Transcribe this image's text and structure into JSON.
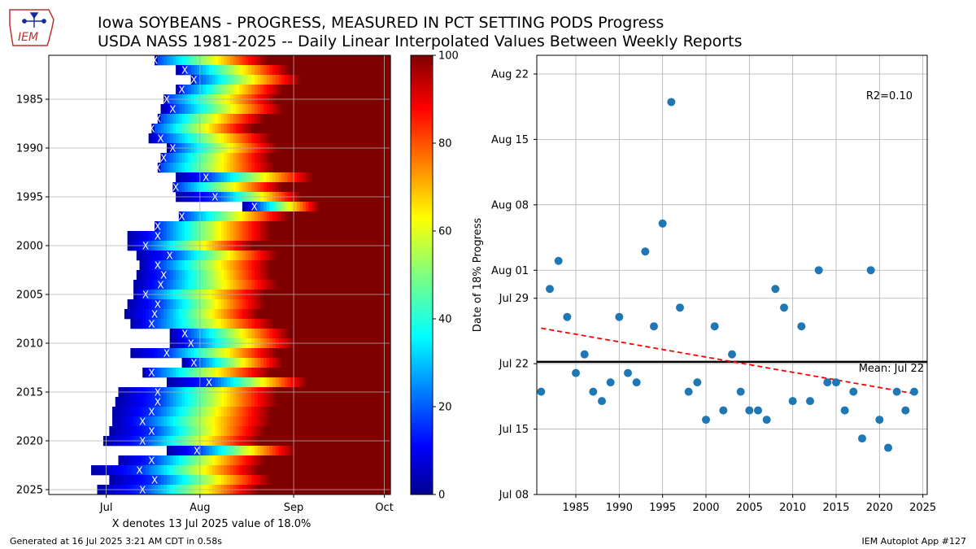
{
  "header": {
    "logo_text": "IEM",
    "title_line1": "Iowa SOYBEANS - PROGRESS, MEASURED IN PCT SETTING PODS Progress",
    "title_line2": "USDA NASS 1981-2025 -- Daily Linear Interpolated Values Between Weekly Reports"
  },
  "footer": {
    "left": "Generated at 16 Jul 2025 3:21 AM CDT in 0.58s",
    "right": "IEM Autoplot App #127"
  },
  "colors": {
    "scatter_point": "#1f77b4",
    "trend_line": "#ff0000",
    "mean_line": "#000000",
    "grid": "#b0b0b0"
  },
  "chart_data": [
    {
      "type": "heatmap",
      "colormap": "jet",
      "xlabel": "X denotes 13 Jul 2025 value of 18.0%",
      "x_ticks": [
        {
          "label": "Jul",
          "doy": 182
        },
        {
          "label": "Aug",
          "doy": 213
        },
        {
          "label": "Sep",
          "doy": 244
        },
        {
          "label": "Oct",
          "doy": 274
        }
      ],
      "xlim_doy": [
        163,
        276
      ],
      "y_ticks": [
        1985,
        1990,
        1995,
        2000,
        2005,
        2010,
        2015,
        2020,
        2025
      ],
      "ylim": [
        1980.5,
        2025.5
      ],
      "colorbar_ticks": [
        0,
        20,
        40,
        60,
        80,
        100
      ],
      "colorbar_range": [
        0,
        100
      ],
      "marker_label": "X",
      "marker_value_pct": 18.0,
      "rows": [
        {
          "year": 1981,
          "start_doy": 198,
          "x_doy": 198,
          "full_doy": 235
        },
        {
          "year": 1982,
          "start_doy": 205,
          "x_doy": 208,
          "full_doy": 242
        },
        {
          "year": 1983,
          "start_doy": 210,
          "x_doy": 211,
          "full_doy": 246
        },
        {
          "year": 1984,
          "start_doy": 205,
          "x_doy": 207,
          "full_doy": 240
        },
        {
          "year": 1985,
          "start_doy": 201,
          "x_doy": 202,
          "full_doy": 238
        },
        {
          "year": 1986,
          "start_doy": 200,
          "x_doy": 204,
          "full_doy": 240
        },
        {
          "year": 1987,
          "start_doy": 199,
          "x_doy": 199,
          "full_doy": 234
        },
        {
          "year": 1988,
          "start_doy": 197,
          "x_doy": 197,
          "full_doy": 230
        },
        {
          "year": 1989,
          "start_doy": 196,
          "x_doy": 200,
          "full_doy": 236
        },
        {
          "year": 1990,
          "start_doy": 202,
          "x_doy": 204,
          "full_doy": 238
        },
        {
          "year": 1991,
          "start_doy": 200,
          "x_doy": 201,
          "full_doy": 236
        },
        {
          "year": 1992,
          "start_doy": 199,
          "x_doy": 199,
          "full_doy": 237
        },
        {
          "year": 1993,
          "start_doy": 205,
          "x_doy": 215,
          "full_doy": 250
        },
        {
          "year": 1994,
          "start_doy": 204,
          "x_doy": 205,
          "full_doy": 240
        },
        {
          "year": 1995,
          "start_doy": 205,
          "x_doy": 218,
          "full_doy": 246
        },
        {
          "year": 1996,
          "start_doy": 227,
          "x_doy": 231,
          "full_doy": 252
        },
        {
          "year": 1997,
          "start_doy": 206,
          "x_doy": 207,
          "full_doy": 242
        },
        {
          "year": 1998,
          "start_doy": 198,
          "x_doy": 199,
          "full_doy": 236
        },
        {
          "year": 1999,
          "start_doy": 189,
          "x_doy": 199,
          "full_doy": 236
        },
        {
          "year": 2000,
          "start_doy": 189,
          "x_doy": 195,
          "full_doy": 230
        },
        {
          "year": 2001,
          "start_doy": 192,
          "x_doy": 203,
          "full_doy": 238
        },
        {
          "year": 2002,
          "start_doy": 193,
          "x_doy": 199,
          "full_doy": 236
        },
        {
          "year": 2003,
          "start_doy": 192,
          "x_doy": 201,
          "full_doy": 236
        },
        {
          "year": 2004,
          "start_doy": 191,
          "x_doy": 200,
          "full_doy": 238
        },
        {
          "year": 2005,
          "start_doy": 191,
          "x_doy": 195,
          "full_doy": 234
        },
        {
          "year": 2006,
          "start_doy": 189,
          "x_doy": 199,
          "full_doy": 234
        },
        {
          "year": 2007,
          "start_doy": 188,
          "x_doy": 198,
          "full_doy": 232
        },
        {
          "year": 2008,
          "start_doy": 190,
          "x_doy": 197,
          "full_doy": 237
        },
        {
          "year": 2009,
          "start_doy": 203,
          "x_doy": 208,
          "full_doy": 242
        },
        {
          "year": 2010,
          "start_doy": 203,
          "x_doy": 210,
          "full_doy": 244
        },
        {
          "year": 2011,
          "start_doy": 190,
          "x_doy": 202,
          "full_doy": 238
        },
        {
          "year": 2012,
          "start_doy": 207,
          "x_doy": 211,
          "full_doy": 240
        },
        {
          "year": 2013,
          "start_doy": 194,
          "x_doy": 197,
          "full_doy": 236
        },
        {
          "year": 2014,
          "start_doy": 202,
          "x_doy": 216,
          "full_doy": 248
        },
        {
          "year": 2015,
          "start_doy": 186,
          "x_doy": 199,
          "full_doy": 238
        },
        {
          "year": 2016,
          "start_doy": 185,
          "x_doy": 199,
          "full_doy": 238
        },
        {
          "year": 2017,
          "start_doy": 184,
          "x_doy": 197,
          "full_doy": 236
        },
        {
          "year": 2018,
          "start_doy": 184,
          "x_doy": 194,
          "full_doy": 236
        },
        {
          "year": 2019,
          "start_doy": 183,
          "x_doy": 197,
          "full_doy": 234
        },
        {
          "year": 2020,
          "start_doy": 181,
          "x_doy": 194,
          "full_doy": 232
        },
        {
          "year": 2021,
          "start_doy": 202,
          "x_doy": 212,
          "full_doy": 244
        },
        {
          "year": 2022,
          "start_doy": 186,
          "x_doy": 197,
          "full_doy": 234
        },
        {
          "year": 2023,
          "start_doy": 177,
          "x_doy": 193,
          "full_doy": 232
        },
        {
          "year": 2024,
          "start_doy": 183,
          "x_doy": 198,
          "full_doy": 236
        },
        {
          "year": 2025,
          "start_doy": 179,
          "x_doy": 194,
          "full_doy": 232
        }
      ]
    },
    {
      "type": "scatter",
      "ylabel": "Date of 18% Progress",
      "x_ticks": [
        1985,
        1990,
        1995,
        2000,
        2005,
        2010,
        2015,
        2020,
        2025
      ],
      "xlim": [
        1980.5,
        2025.5
      ],
      "y_ticks": [
        {
          "label": "Jul 08",
          "day": 0
        },
        {
          "label": "Jul 15",
          "day": 7
        },
        {
          "label": "Jul 22",
          "day": 14
        },
        {
          "label": "Jul 29",
          "day": 21
        },
        {
          "label": "Aug 01",
          "day": 24
        },
        {
          "label": "Aug 08",
          "day": 31
        },
        {
          "label": "Aug 15",
          "day": 38
        },
        {
          "label": "Aug 22",
          "day": 45
        }
      ],
      "ylim_days_since_jul08": [
        0,
        47
      ],
      "r2_label": "R2=0.10",
      "mean_label": "Mean: Jul 22",
      "mean_day": 14.2,
      "trend": {
        "x": [
          1981,
          2024
        ],
        "y": [
          17.8,
          10.8
        ]
      },
      "points": [
        {
          "year": 1981,
          "day": 11
        },
        {
          "year": 1982,
          "day": 22
        },
        {
          "year": 1983,
          "day": 25
        },
        {
          "year": 1984,
          "day": 19
        },
        {
          "year": 1985,
          "day": 13
        },
        {
          "year": 1986,
          "day": 15
        },
        {
          "year": 1987,
          "day": 11
        },
        {
          "year": 1988,
          "day": 10
        },
        {
          "year": 1989,
          "day": 12
        },
        {
          "year": 1990,
          "day": 19
        },
        {
          "year": 1991,
          "day": 13
        },
        {
          "year": 1992,
          "day": 12
        },
        {
          "year": 1993,
          "day": 26
        },
        {
          "year": 1994,
          "day": 18
        },
        {
          "year": 1995,
          "day": 29
        },
        {
          "year": 1996,
          "day": 42
        },
        {
          "year": 1997,
          "day": 20
        },
        {
          "year": 1998,
          "day": 11
        },
        {
          "year": 1999,
          "day": 12
        },
        {
          "year": 2000,
          "day": 8
        },
        {
          "year": 2001,
          "day": 18
        },
        {
          "year": 2002,
          "day": 9
        },
        {
          "year": 2003,
          "day": 15
        },
        {
          "year": 2004,
          "day": 11
        },
        {
          "year": 2005,
          "day": 9
        },
        {
          "year": 2006,
          "day": 9
        },
        {
          "year": 2007,
          "day": 8
        },
        {
          "year": 2008,
          "day": 22
        },
        {
          "year": 2009,
          "day": 20
        },
        {
          "year": 2010,
          "day": 10
        },
        {
          "year": 2011,
          "day": 18
        },
        {
          "year": 2012,
          "day": 10
        },
        {
          "year": 2013,
          "day": 24
        },
        {
          "year": 2014,
          "day": 12
        },
        {
          "year": 2015,
          "day": 12
        },
        {
          "year": 2016,
          "day": 9
        },
        {
          "year": 2017,
          "day": 11
        },
        {
          "year": 2018,
          "day": 6
        },
        {
          "year": 2019,
          "day": 24
        },
        {
          "year": 2020,
          "day": 8
        },
        {
          "year": 2021,
          "day": 5
        },
        {
          "year": 2022,
          "day": 11
        },
        {
          "year": 2023,
          "day": 9
        },
        {
          "year": 2024,
          "day": 11
        }
      ]
    }
  ]
}
